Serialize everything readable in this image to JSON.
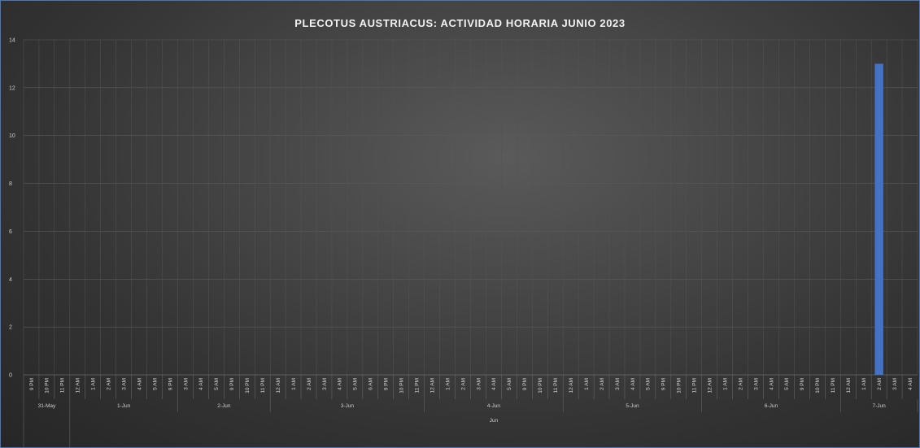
{
  "chart_data": {
    "type": "bar",
    "title": "PLECOTUS AUSTRIACUS: ACTIVIDAD HORARIA JUNIO 2023",
    "xlabel": "",
    "ylabel": "",
    "ylim": [
      0,
      14
    ],
    "yticks": [
      "0",
      "2",
      "4",
      "6",
      "8",
      "10",
      "12",
      "14"
    ],
    "grid": true,
    "legend": "none",
    "bar_color": "#4472c4",
    "categories": [
      "9 PM",
      "10 PM",
      "11 PM",
      "12 AM",
      "1 AM",
      "2 AM",
      "3 AM",
      "4 AM",
      "5 AM",
      "9 PM",
      "3 AM",
      "4 AM",
      "5 AM",
      "9 PM",
      "10 PM",
      "11 PM",
      "12 AM",
      "1 AM",
      "2 AM",
      "3 AM",
      "4 AM",
      "5 AM",
      "6 AM",
      "9 PM",
      "10 PM",
      "11 PM",
      "12 AM",
      "1 AM",
      "2 AM",
      "3 AM",
      "4 AM",
      "5 AM",
      "9 PM",
      "10 PM",
      "11 PM",
      "12 AM",
      "1 AM",
      "2 AM",
      "3 AM",
      "4 AM",
      "5 AM",
      "9 PM",
      "10 PM",
      "11 PM",
      "12 AM",
      "1 AM",
      "2 AM",
      "3 AM",
      "4 AM",
      "5 AM",
      "9 PM",
      "10 PM",
      "11 PM",
      "12 AM",
      "1 AM",
      "2 AM",
      "3 AM",
      "4 AM"
    ],
    "days": [
      {
        "label": "31-May",
        "count": 3
      },
      {
        "label": "1-Jun",
        "count": 7
      },
      {
        "label": "2-Jun",
        "count": 6
      },
      {
        "label": "3-Jun",
        "count": 10
      },
      {
        "label": "4-Jun",
        "count": 9
      },
      {
        "label": "5-Jun",
        "count": 9
      },
      {
        "label": "6-Jun",
        "count": 9
      },
      {
        "label": "7-Jun",
        "count": 5
      }
    ],
    "months": [
      {
        "label": "",
        "count": 3
      },
      {
        "label": "Jun",
        "count": 55
      }
    ],
    "values": [
      0,
      0,
      0,
      0,
      0,
      0,
      0,
      0,
      0,
      0,
      0,
      0,
      0,
      0,
      0,
      0,
      0,
      0,
      0,
      0,
      0,
      0,
      0,
      0,
      0,
      0,
      0,
      0,
      0,
      0,
      0,
      0,
      0,
      0,
      0,
      0,
      0,
      0,
      0,
      0,
      0,
      0,
      0,
      0,
      0,
      0,
      0,
      0,
      0,
      0,
      0,
      0,
      0,
      0,
      0,
      13,
      0,
      0
    ]
  }
}
